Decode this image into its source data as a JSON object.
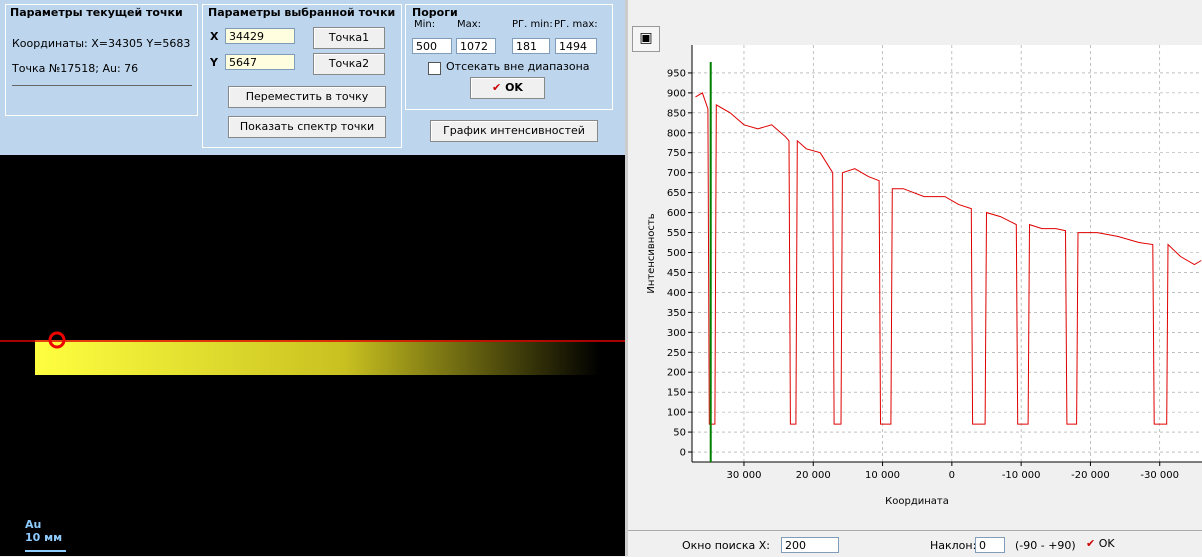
{
  "current_point": {
    "title": "Параметры текущей точки",
    "coords": "Координаты: X=34305 Y=5683",
    "point": "Точка №17518; Au: 76"
  },
  "selected_point": {
    "title": "Параметры выбранной точки",
    "x_label": "X",
    "x_value": "34429",
    "y_label": "Y",
    "y_value": "5647",
    "point1": "Точка1",
    "point2": "Точка2",
    "move": "Переместить в точку",
    "spectrum": "Показать спектр точки"
  },
  "thresholds": {
    "title": "Пороги",
    "min_label": "Min:",
    "max_label": "Max:",
    "rg_min_label": "РГ. min:",
    "rg_max_label": "РГ. max:",
    "min": "500",
    "max": "1072",
    "rg_min": "181",
    "rg_max": "1494",
    "cut": "Отсекать вне диапазона",
    "ok": "OK",
    "graph": "График интенсивностей"
  },
  "image": {
    "element": "Au",
    "scale": "10 мм"
  },
  "chart_data": {
    "type": "line",
    "ylabel": "Интенсивность",
    "xlabel": "Координата",
    "x": [
      37000,
      36000,
      35200,
      35000,
      34200,
      34000,
      32000,
      30000,
      28000,
      26000,
      24000,
      23500,
      23300,
      22500,
      22300,
      21000,
      19000,
      17200,
      17000,
      16000,
      15800,
      14000,
      12000,
      10500,
      10300,
      8800,
      8600,
      7000,
      4000,
      1000,
      -1000,
      -2800,
      -3000,
      -4800,
      -5000,
      -7000,
      -9300,
      -9500,
      -11000,
      -11200,
      -13000,
      -15000,
      -16400,
      -16600,
      -18000,
      -18200,
      -21000,
      -24000,
      -27000,
      -29000,
      -29200,
      -31000,
      -31200,
      -33000,
      -35000,
      -36000
    ],
    "series": [
      {
        "color": "#e00000",
        "values": [
          890,
          900,
          860,
          70,
          70,
          870,
          850,
          820,
          810,
          820,
          790,
          780,
          70,
          70,
          780,
          760,
          750,
          700,
          70,
          70,
          700,
          710,
          690,
          680,
          70,
          70,
          660,
          660,
          640,
          640,
          620,
          610,
          70,
          70,
          600,
          590,
          570,
          70,
          70,
          570,
          560,
          560,
          555,
          70,
          70,
          550,
          550,
          540,
          525,
          520,
          70,
          70,
          520,
          490,
          470,
          480
        ]
      }
    ],
    "cursor_x": 34800,
    "cursor_color": "#008000",
    "xlim": [
      37500,
      -36100
    ],
    "ylim": [
      -25,
      1020
    ],
    "xticks": [
      {
        "value": 30000,
        "label": "30 000"
      },
      {
        "value": 20000,
        "label": "20 000"
      },
      {
        "value": 10000,
        "label": "10 000"
      },
      0,
      {
        "value": -10000,
        "label": "-10 000"
      },
      {
        "value": -20000,
        "label": "-20 000"
      },
      {
        "value": -30000,
        "label": "-30 000"
      }
    ],
    "yticks": [
      0,
      50,
      100,
      150,
      200,
      250,
      300,
      350,
      400,
      450,
      500,
      550,
      600,
      650,
      700,
      750,
      800,
      850,
      900,
      950
    ],
    "grid": true
  },
  "bottom_bar": {
    "window_label": "Окно поиска X:",
    "window": "200",
    "slope_label": "Наклон:",
    "slope": "0",
    "range": "(-90 - +90)",
    "ok": "OK"
  }
}
